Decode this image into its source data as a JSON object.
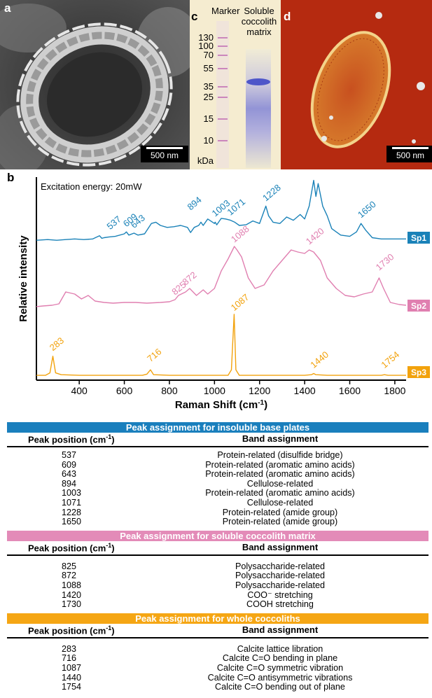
{
  "panel_a": {
    "label": "a",
    "scalebar": "500 nm"
  },
  "panel_c": {
    "label": "c",
    "lane_marker": "Marker",
    "lane_sample": "Soluble\ncoccolith\nmatrix",
    "marker_values": [
      "130",
      "100",
      "70",
      "55",
      "35",
      "25",
      "15",
      "10"
    ],
    "unit": "kDa"
  },
  "panel_d": {
    "label": "d",
    "scalebar": "500 nm"
  },
  "panel_b": {
    "label": "b"
  },
  "chart_data": {
    "type": "line",
    "xlabel": "Raman Shift (cm-1)",
    "xlabel_text": "Raman Shift (cm",
    "xlabel_sup": "-1",
    "xlabel_end": ")",
    "ylabel": "Relative intensity",
    "xlim": [
      210,
      1850
    ],
    "xticks": [
      400,
      600,
      800,
      1000,
      1200,
      1400,
      1600,
      1800
    ],
    "annotation": "Excitation energy: 20mW",
    "series": [
      {
        "name": "Sp1",
        "color": "#1a82b8",
        "x": [
          210,
          260,
          300,
          340,
          380,
          420,
          460,
          490,
          500,
          510,
          530,
          560,
          600,
          609,
          620,
          643,
          660,
          690,
          720,
          740,
          760,
          790,
          820,
          850,
          880,
          894,
          910,
          930,
          940,
          950,
          970,
          1000,
          1003,
          1010,
          1030,
          1050,
          1071,
          1090,
          1110,
          1140,
          1170,
          1200,
          1228,
          1240,
          1260,
          1290,
          1320,
          1350,
          1380,
          1400,
          1420,
          1440,
          1450,
          1460,
          1480,
          1500,
          1520,
          1560,
          1600,
          1630,
          1650,
          1670,
          1700,
          1740,
          1780,
          1850
        ],
        "y": [
          0.02,
          0.03,
          0.02,
          0.03,
          0.04,
          0.03,
          0.04,
          0.09,
          0.05,
          0.06,
          0.07,
          0.08,
          0.12,
          0.15,
          0.1,
          0.13,
          0.1,
          0.12,
          0.28,
          0.3,
          0.25,
          0.22,
          0.23,
          0.25,
          0.22,
          0.14,
          0.22,
          0.25,
          0.3,
          0.25,
          0.35,
          0.28,
          0.3,
          0.26,
          0.36,
          0.35,
          0.33,
          0.3,
          0.25,
          0.26,
          0.32,
          0.28,
          0.55,
          0.4,
          0.3,
          0.28,
          0.38,
          0.33,
          0.42,
          0.35,
          0.55,
          0.95,
          0.7,
          0.9,
          0.55,
          0.4,
          0.2,
          0.1,
          0.08,
          0.15,
          0.28,
          0.18,
          0.06,
          0.04,
          0.04,
          0.04
        ],
        "labels": [
          537,
          609,
          643,
          894,
          1003,
          1071,
          1228,
          1650
        ],
        "label_y": [
          0.18,
          0.22,
          0.2,
          0.48,
          0.38,
          0.4,
          0.62,
          0.36
        ]
      },
      {
        "name": "Sp2",
        "color": "#e07fb0",
        "x": [
          210,
          240,
          280,
          310,
          340,
          380,
          410,
          440,
          470,
          510,
          550,
          600,
          650,
          700,
          760,
          800,
          825,
          840,
          872,
          890,
          920,
          950,
          970,
          1000,
          1030,
          1060,
          1088,
          1100,
          1120,
          1150,
          1180,
          1220,
          1260,
          1300,
          1340,
          1370,
          1400,
          1420,
          1440,
          1470,
          1500,
          1540,
          1580,
          1620,
          1660,
          1700,
          1730,
          1750,
          1780,
          1820,
          1850
        ],
        "y": [
          0.04,
          0.05,
          0.06,
          0.08,
          0.25,
          0.22,
          0.15,
          0.2,
          0.12,
          0.1,
          0.09,
          0.1,
          0.1,
          0.09,
          0.1,
          0.11,
          0.14,
          0.2,
          0.25,
          0.3,
          0.2,
          0.28,
          0.22,
          0.3,
          0.55,
          0.72,
          0.9,
          0.85,
          0.75,
          0.45,
          0.3,
          0.35,
          0.55,
          0.7,
          0.85,
          0.82,
          0.8,
          0.85,
          0.82,
          0.7,
          0.45,
          0.3,
          0.2,
          0.18,
          0.22,
          0.25,
          0.45,
          0.3,
          0.1,
          0.07,
          0.06
        ],
        "labels": [
          825,
          872,
          1088,
          1420,
          1730
        ],
        "label_y": [
          0.2,
          0.34,
          0.95,
          0.92,
          0.55
        ]
      },
      {
        "name": "Sp3",
        "color": "#f2a20c",
        "x": [
          210,
          250,
          270,
          283,
          295,
          320,
          400,
          500,
          600,
          680,
          700,
          716,
          730,
          800,
          900,
          1000,
          1060,
          1075,
          1087,
          1095,
          1110,
          1200,
          1300,
          1400,
          1430,
          1440,
          1450,
          1500,
          1600,
          1700,
          1740,
          1754,
          1770,
          1850
        ],
        "y": [
          0.01,
          0.01,
          0.05,
          0.32,
          0.05,
          0.02,
          0.01,
          0.01,
          0.01,
          0.01,
          0.03,
          0.1,
          0.02,
          0.01,
          0.01,
          0.01,
          0.01,
          0.1,
          1.0,
          0.1,
          0.01,
          0.01,
          0.01,
          0.01,
          0.02,
          0.04,
          0.02,
          0.01,
          0.01,
          0.01,
          0.01,
          0.02,
          0.01,
          0.01
        ],
        "labels": [
          283,
          716,
          1087,
          1440,
          1754
        ],
        "label_y": [
          0.4,
          0.22,
          1.05,
          0.12,
          0.12
        ]
      }
    ]
  },
  "tables": [
    {
      "header": "Peak assignment for insoluble base plates",
      "color": "#1a7fbd",
      "col1": "Peak position (cm",
      "col1_sup": "-1",
      "col1_end": ")",
      "col2": "Band assignment",
      "rows": [
        [
          "537",
          "Protein-related (disulfide bridge)"
        ],
        [
          "609",
          "Protein-related (aromatic amino acids)"
        ],
        [
          "643",
          "Protein-related (aromatic amino acids)"
        ],
        [
          "894",
          "Cellulose-related"
        ],
        [
          "1003",
          "Protein-related (aromatic amino acids)"
        ],
        [
          "1071",
          "Cellulose-related"
        ],
        [
          "1228",
          "Protein-related (amide group)"
        ],
        [
          "1650",
          "Protein-related (amide group)"
        ]
      ]
    },
    {
      "header": "Peak assignment for soluble coccolith matrix",
      "color": "#e38bb8",
      "col1": "Peak position (cm",
      "col1_sup": "-1",
      "col1_end": ")",
      "col2": "Band assignment",
      "rows": [
        [
          "825",
          "Polysaccharide-related"
        ],
        [
          "872",
          "Polysaccharide-related"
        ],
        [
          "1088",
          "Polysaccharide-related"
        ],
        [
          "1420",
          "COO⁻ stretching"
        ],
        [
          "1730",
          "COOH stretching"
        ]
      ]
    },
    {
      "header": "Peak assignment for whole coccoliths",
      "color": "#f5a614",
      "col1": "Peak position (cm",
      "col1_sup": "-1",
      "col1_end": ")",
      "col2": "Band assignment",
      "rows": [
        [
          "283",
          "Calcite lattice libration"
        ],
        [
          "716",
          "Calcite C=O bending in plane"
        ],
        [
          "1087",
          "Calcite C=O symmetric vibration"
        ],
        [
          "1440",
          "Calcite C=O antisymmetric vibrations"
        ],
        [
          "1754",
          "Calcite C=O bending out of plane"
        ]
      ]
    }
  ]
}
